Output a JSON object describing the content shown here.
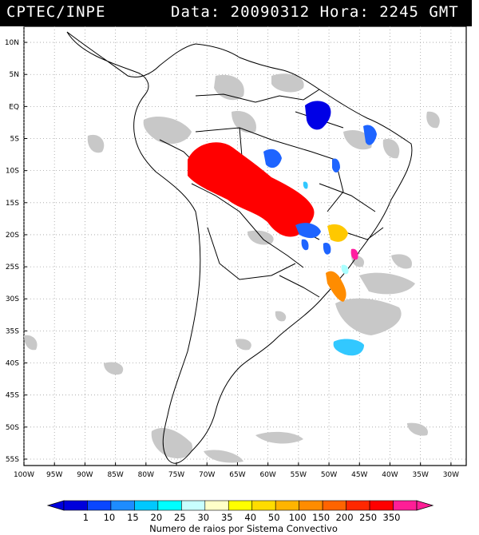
{
  "header": {
    "source": "CPTEC/INPE",
    "datetime": "Data: 20090312 Hora: 2245 GMT"
  },
  "map": {
    "lat_labels": [
      "10N",
      "5N",
      "EQ",
      "5S",
      "10S",
      "15S",
      "20S",
      "25S",
      "30S",
      "35S",
      "40S",
      "45S",
      "50S",
      "55S"
    ],
    "lon_labels": [
      "100W",
      "95W",
      "90W",
      "85W",
      "80W",
      "75W",
      "70W",
      "65W",
      "60W",
      "55W",
      "50W",
      "45W",
      "40W",
      "35W",
      "30W"
    ],
    "lat_values": [
      10,
      5,
      0,
      -5,
      -10,
      -15,
      -20,
      -25,
      -30,
      -35,
      -40,
      -45,
      -50,
      -55
    ],
    "lon_values": [
      -100,
      -95,
      -90,
      -85,
      -80,
      -75,
      -70,
      -65,
      -60,
      -55,
      -50,
      -45,
      -40,
      -35,
      -30
    ],
    "extent": {
      "lon_min": -100,
      "lon_max": -27.5,
      "lat_min": -56,
      "lat_max": 12.5
    },
    "colors": {
      "land_outline": "#000000",
      "cloud": "#c8c8c8",
      "grid": "#9a9a9a"
    }
  },
  "storms": [
    {
      "name": "red-cluster",
      "color": "#ff0000",
      "lon": -62.0,
      "lat": -13.0
    },
    {
      "name": "dark-blue-north",
      "color": "#0000ff",
      "lon": -50.5,
      "lat": -1.5
    },
    {
      "name": "blue-northeast",
      "color": "#1e64ff",
      "lon": -45.0,
      "lat": -5.0
    },
    {
      "name": "blue-center",
      "color": "#1e64ff",
      "lon": -57.5,
      "lat": -8.5
    },
    {
      "name": "blue-southeast",
      "color": "#1e64ff",
      "lon": -54.5,
      "lat": -19.5
    },
    {
      "name": "yellow-southeast",
      "color": "#ffc800",
      "lon": -46.5,
      "lat": -19.7
    },
    {
      "name": "orange-south",
      "color": "#ff8c00",
      "lon": -47.5,
      "lat": -28.5
    },
    {
      "name": "magenta-coast",
      "color": "#ff1ea0",
      "lon": -43.2,
      "lat": -22.8
    },
    {
      "name": "cyan-ocean",
      "color": "#32c8ff",
      "lon": -42.0,
      "lat": -37.0
    }
  ],
  "colorbar": {
    "labels": [
      "1",
      "10",
      "15",
      "20",
      "25",
      "30",
      "35",
      "40",
      "50",
      "100",
      "150",
      "200",
      "250",
      "350"
    ],
    "colors": [
      "#0000dc",
      "#0a46ff",
      "#1e8cff",
      "#00c8ff",
      "#00ffff",
      "#c8ffff",
      "#ffffc8",
      "#ffff00",
      "#ffdc00",
      "#ffb400",
      "#ff8c00",
      "#ff6400",
      "#ff2800",
      "#ff0000",
      "#ff1e96"
    ],
    "caption": "Numero de raios por Sistema Convectivo"
  }
}
